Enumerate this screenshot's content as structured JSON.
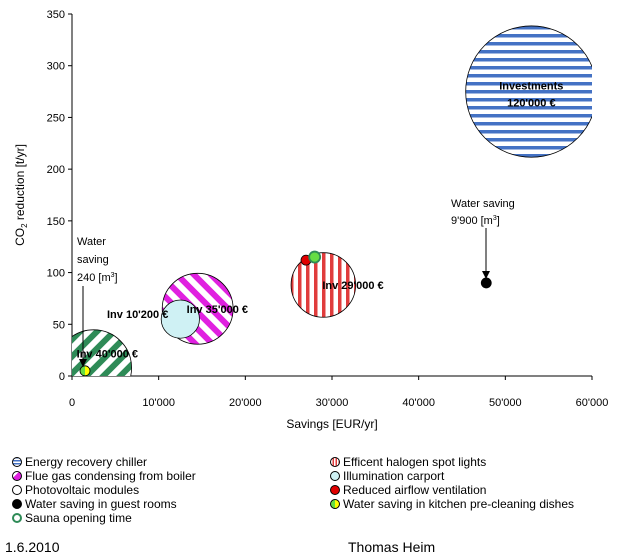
{
  "chart_data": {
    "type": "bubble",
    "xlabel": "Savings [EUR/yr]",
    "ylabel_main": "CO",
    "ylabel_sub": "2",
    "ylabel_rest": " reduction [t/yr]",
    "xlim": [
      0,
      60000
    ],
    "ylim": [
      0,
      350
    ],
    "x_ticks": [
      0,
      10000,
      20000,
      30000,
      40000,
      50000,
      60000
    ],
    "x_tick_labels": [
      "0",
      "10'000",
      "20'000",
      "30'000",
      "40'000",
      "50'000",
      "60'000"
    ],
    "y_ticks": [
      0,
      50,
      100,
      150,
      200,
      250,
      300,
      350
    ],
    "y_tick_labels": [
      "0",
      "50",
      "100",
      "150",
      "200",
      "250",
      "300",
      "350"
    ],
    "grid": false,
    "bubbles": [
      {
        "name": "Energy recovery chiller",
        "x": 53000,
        "y": 275,
        "investment": 120000,
        "pattern": "horizontal",
        "color": "#4472c4",
        "label_lines": [
          "Investments",
          "120'000  €"
        ]
      },
      {
        "name": "Efficent halogen spot lights",
        "x": 29000,
        "y": 88,
        "investment": 29000,
        "pattern": "vertical",
        "color": "#e03c3c",
        "label_lines": [
          "Inv 29'000  €"
        ]
      },
      {
        "name": "Flue gas condensing from boiler",
        "x": 14500,
        "y": 65,
        "investment": 35000,
        "pattern": "diagonal",
        "color": "#e020e0",
        "label_lines": [
          "Inv 35'000  €"
        ]
      },
      {
        "name": "Illumination carport",
        "x": 12500,
        "y": 55,
        "investment": 10200,
        "pattern": "solid",
        "color": "#cff1f4",
        "label_lines": [
          "Inv 10'200  €"
        ]
      },
      {
        "name": "Photovoltaic modules",
        "x": 2500,
        "y": 8,
        "investment": 40000,
        "pattern": "diagonal",
        "color": "#2e8b57",
        "label_lines": [
          "Inv 40'000  €"
        ]
      },
      {
        "name": "Reduced airflow ventilation",
        "x": 27000,
        "y": 112,
        "investment": 0,
        "pattern": "solid",
        "color": "#e00000",
        "label_lines": []
      },
      {
        "name": "Sauna opening time",
        "x": 28000,
        "y": 115,
        "investment": 0,
        "pattern": "solid",
        "color": "#66dd44",
        "label_lines": []
      },
      {
        "name": "Water saving in guest rooms",
        "x": 47800,
        "y": 90,
        "investment": 0,
        "pattern": "solid",
        "color": "#000000",
        "label_lines": []
      },
      {
        "name": "Water saving in kitchen pre-cleaning dishes",
        "x": 1500,
        "y": 5,
        "investment": 0,
        "pattern": "solid",
        "color": "#ffff00",
        "label_lines": []
      }
    ],
    "annotations": [
      {
        "lines": [
          "Water saving",
          "9'900 [m",
          "]"
        ],
        "superscript": "3"
      },
      {
        "lines": [
          "Water",
          "saving",
          "240 [m",
          "]"
        ],
        "superscript": "3"
      }
    ],
    "legend": [
      {
        "label": "Energy recovery chiller",
        "color": "#4472c4",
        "style": "hstripes"
      },
      {
        "label": "Flue gas condensing from boiler",
        "color": "#e020e0",
        "style": "half"
      },
      {
        "label": "Photovoltaic modules",
        "color": "#ffffff",
        "style": "plain"
      },
      {
        "label": "Water saving in guest rooms",
        "color": "#000000",
        "style": "solid"
      },
      {
        "label": "Sauna opening time",
        "color": "#66dd44",
        "style": "ring"
      },
      {
        "label": "Efficent halogen spot lights",
        "color": "#e03c3c",
        "style": "vstripes"
      },
      {
        "label": "Illumination carport",
        "color": "#cff1f4",
        "style": "solid"
      },
      {
        "label": "Reduced airflow ventilation",
        "color": "#e00000",
        "style": "solid"
      },
      {
        "label": "Water saving in kitchen pre-cleaning dishes",
        "color": "#ffff00",
        "style": "split"
      }
    ]
  },
  "footer": {
    "date": "1.6.2010",
    "author": "Thomas Heim"
  }
}
